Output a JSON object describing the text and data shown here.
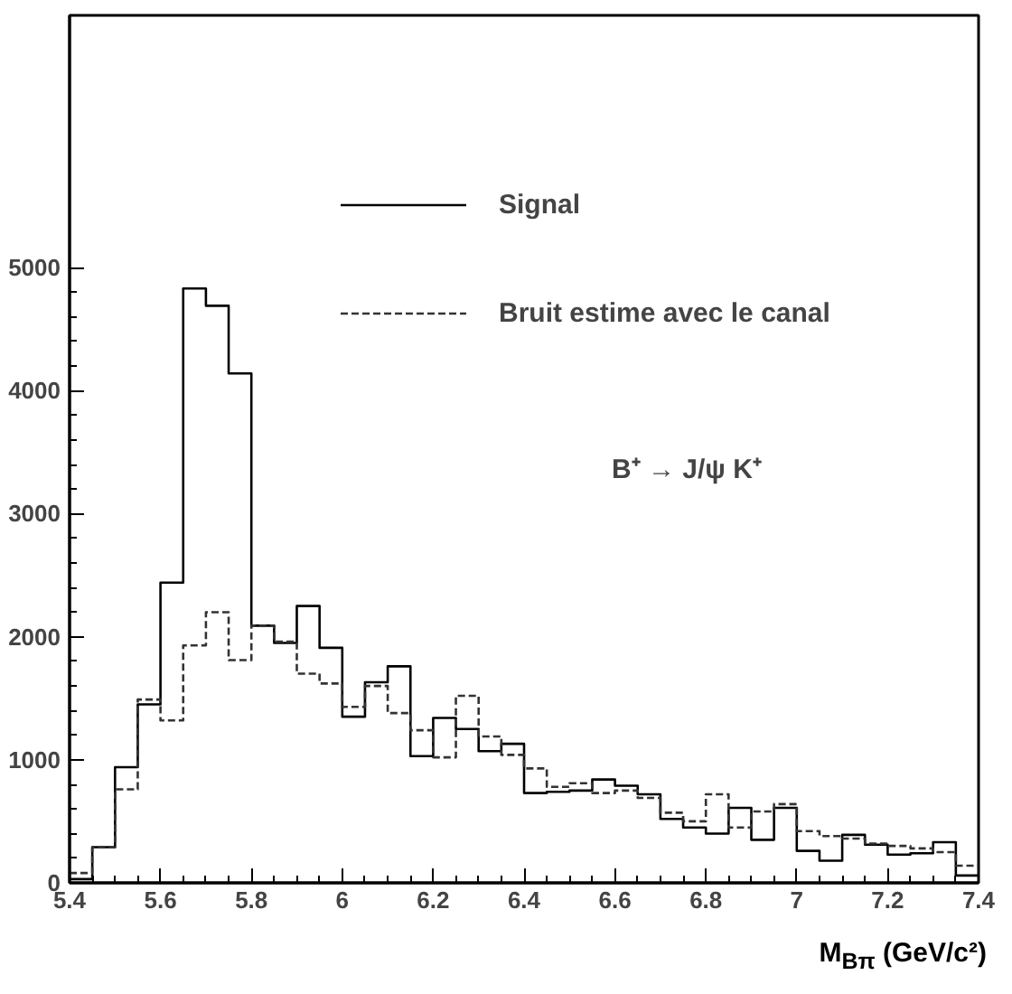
{
  "chart_data": {
    "type": "histogram",
    "xlabel": "M$_{Bπ}$ (GeV/c²)",
    "bins": [
      5.4,
      5.45,
      5.5,
      5.55,
      5.6,
      5.65,
      5.7,
      5.75,
      5.8,
      5.85,
      5.9,
      5.95,
      6.0,
      6.05,
      6.1,
      6.15,
      6.2,
      6.25,
      6.3,
      6.35,
      6.4,
      6.45,
      6.5,
      6.55,
      6.6,
      6.65,
      6.7,
      6.75,
      6.8,
      6.85,
      6.9,
      6.95,
      7.0,
      7.05,
      7.1,
      7.15,
      7.2,
      7.25,
      7.3,
      7.35,
      7.4
    ],
    "series": [
      {
        "name": "Signal",
        "color": "#000000",
        "line_style": "solid",
        "values": [
          30,
          290,
          940,
          1450,
          2440,
          4830,
          4690,
          4140,
          2090,
          1950,
          2250,
          1910,
          1350,
          1630,
          1760,
          1030,
          1340,
          1250,
          1070,
          1130,
          730,
          740,
          750,
          840,
          790,
          720,
          520,
          450,
          400,
          610,
          350,
          610,
          260,
          180,
          390,
          310,
          230,
          240,
          330,
          60
        ]
      },
      {
        "name": "Bruit estime avec le canal",
        "color": "#333333",
        "line_style": "dashed",
        "values": [
          80,
          290,
          760,
          1490,
          1320,
          1930,
          2200,
          1810,
          2090,
          1960,
          1700,
          1620,
          1430,
          1600,
          1380,
          1240,
          1020,
          1520,
          1190,
          1040,
          930,
          780,
          810,
          730,
          750,
          690,
          570,
          500,
          720,
          450,
          580,
          640,
          420,
          380,
          360,
          320,
          300,
          280,
          250,
          140
        ]
      }
    ],
    "annotations": [
      "B⁺ → J/ψ  K⁺"
    ],
    "xlim": [
      5.4,
      7.4
    ],
    "ylim": [
      0,
      7050
    ],
    "xticks": [
      5.4,
      5.6,
      5.8,
      6,
      6.2,
      6.4,
      6.6,
      6.8,
      7,
      7.2,
      7.4
    ],
    "yticks": [
      0,
      1000,
      2000,
      3000,
      4000,
      5000
    ],
    "legend": "top right",
    "grid": false
  }
}
